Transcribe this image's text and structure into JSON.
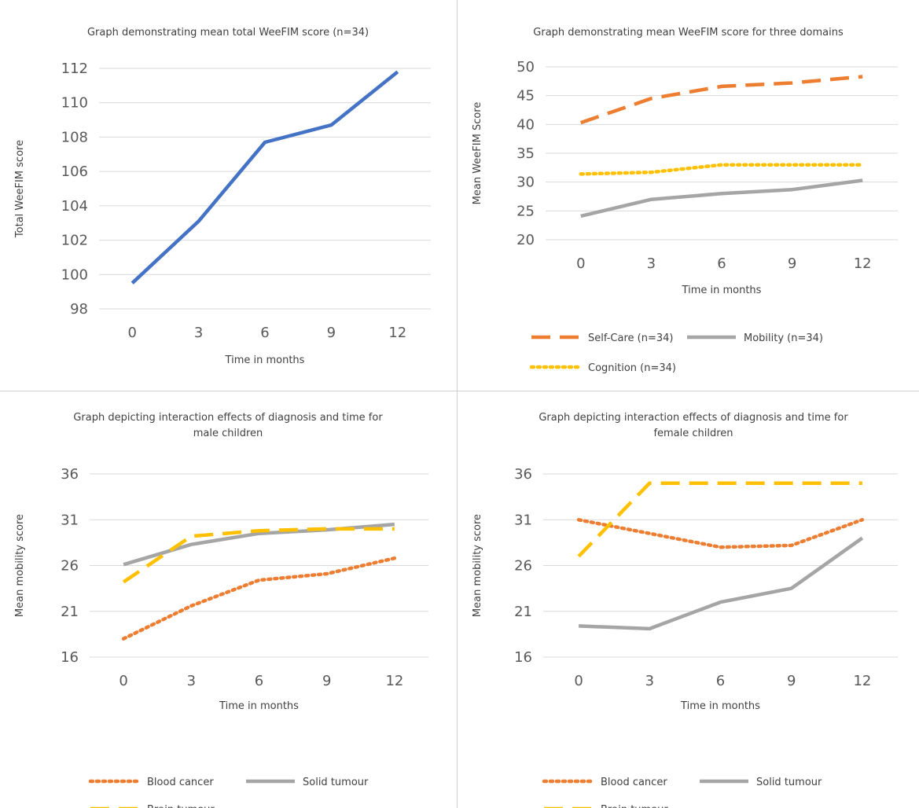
{
  "chart_data": [
    {
      "type": "line",
      "title": "Graph demonstrating mean total WeeFIM score (n=34)",
      "xlabel": "Time in months",
      "ylabel": "Total WeeFIM score",
      "categories": [
        "0",
        "3",
        "6",
        "9",
        "12"
      ],
      "ylim": [
        98,
        112
      ],
      "yticks": [
        98,
        100,
        102,
        104,
        106,
        108,
        110,
        112
      ],
      "grid": true,
      "series": [
        {
          "values": [
            99.5,
            103.1,
            107.7,
            108.7,
            111.8
          ],
          "color": "#4472C4",
          "dash": "solid"
        }
      ]
    },
    {
      "type": "line",
      "title": "Graph demonstrating mean WeeFIM score for three domains",
      "xlabel": "Time in months",
      "ylabel": "Mean WeeFIM Score",
      "categories": [
        "0",
        "3",
        "6",
        "9",
        "12"
      ],
      "ylim": [
        20,
        50
      ],
      "yticks": [
        20,
        25,
        30,
        35,
        40,
        45,
        50
      ],
      "grid": true,
      "legend_position": "bottom",
      "series": [
        {
          "name": "Self-Care (n=34)",
          "values": [
            40.3,
            44.5,
            46.6,
            47.2,
            48.3
          ],
          "color": "#ED7D31",
          "dash": "long-dash"
        },
        {
          "name": "Mobility (n=34)",
          "values": [
            24.1,
            27.0,
            28.0,
            28.7,
            30.3
          ],
          "color": "#A5A5A5",
          "dash": "solid"
        },
        {
          "name": "Cognition (n=34)",
          "values": [
            31.4,
            31.7,
            33.0,
            33.0,
            33.0
          ],
          "color": "#FFC000",
          "dash": "dotted"
        }
      ]
    },
    {
      "type": "line",
      "title": "Graph depicting interaction effects of diagnosis and time for male children",
      "xlabel": "Time in months",
      "ylabel": "Mean mobility score",
      "categories": [
        "0",
        "3",
        "6",
        "9",
        "12"
      ],
      "ylim": [
        16,
        36
      ],
      "yticks": [
        16,
        21,
        26,
        31,
        36
      ],
      "grid": true,
      "legend_position": "bottom",
      "series": [
        {
          "name": "Blood cancer",
          "values": [
            18.0,
            21.6,
            24.4,
            25.1,
            26.8
          ],
          "color": "#ED7D31",
          "dash": "dotted"
        },
        {
          "name": "Solid tumour",
          "values": [
            26.1,
            28.3,
            29.5,
            29.9,
            30.5
          ],
          "color": "#A5A5A5",
          "dash": "solid"
        },
        {
          "name": "Brain tumour",
          "values": [
            24.2,
            29.2,
            29.8,
            30.0,
            30.0
          ],
          "color": "#FFC000",
          "dash": "long-dash"
        }
      ]
    },
    {
      "type": "line",
      "title": "Graph depicting interaction effects of diagnosis and time for female children",
      "xlabel": "Time in months",
      "ylabel": "Mean mobility score",
      "categories": [
        "0",
        "3",
        "6",
        "9",
        "12"
      ],
      "ylim": [
        16,
        36
      ],
      "yticks": [
        16,
        21,
        26,
        31,
        36
      ],
      "grid": true,
      "legend_position": "bottom",
      "series": [
        {
          "name": "Blood cancer",
          "values": [
            31.0,
            29.5,
            28.0,
            28.2,
            31.0
          ],
          "color": "#ED7D31",
          "dash": "dotted"
        },
        {
          "name": "Solid tumour",
          "values": [
            19.4,
            19.1,
            22.0,
            23.5,
            29.0
          ],
          "color": "#A5A5A5",
          "dash": "solid"
        },
        {
          "name": "Brain tumour",
          "values": [
            27.0,
            35.0,
            35.0,
            35.0,
            35.0
          ],
          "color": "#FFC000",
          "dash": "long-dash"
        }
      ]
    }
  ]
}
